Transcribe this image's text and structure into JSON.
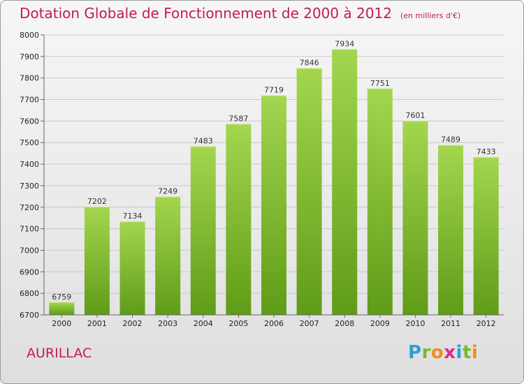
{
  "title": "Dotation Globale de Fonctionnement de 2000 à 2012",
  "unit_note": "(en milliers d'€)",
  "commune": "AURILLAC",
  "logo": {
    "letters": [
      "P",
      "r",
      "o",
      "x",
      "i",
      "t",
      "i"
    ],
    "colors": [
      "#2a9fd8",
      "#7ab929",
      "#f08c1e",
      "#d42e8a",
      "#2a9fd8",
      "#7ab929",
      "#f08c1e"
    ]
  },
  "colors": {
    "title": "#c3195d",
    "bar_top": "#a4d64f",
    "bar_bottom": "#5f9c17",
    "grid": "#c8c8c8"
  },
  "chart_data": {
    "type": "bar",
    "categories": [
      "2000",
      "2001",
      "2002",
      "2003",
      "2004",
      "2005",
      "2006",
      "2007",
      "2008",
      "2009",
      "2010",
      "2011",
      "2012"
    ],
    "values": [
      6759,
      7202,
      7134,
      7249,
      7483,
      7587,
      7719,
      7846,
      7934,
      7751,
      7601,
      7489,
      7433
    ],
    "ylim": [
      6700,
      8000
    ],
    "yticks": [
      6700,
      6800,
      6900,
      7000,
      7100,
      7200,
      7300,
      7400,
      7500,
      7600,
      7700,
      7800,
      7900,
      8000
    ],
    "grid": true,
    "xlabel": "",
    "ylabel": ""
  }
}
